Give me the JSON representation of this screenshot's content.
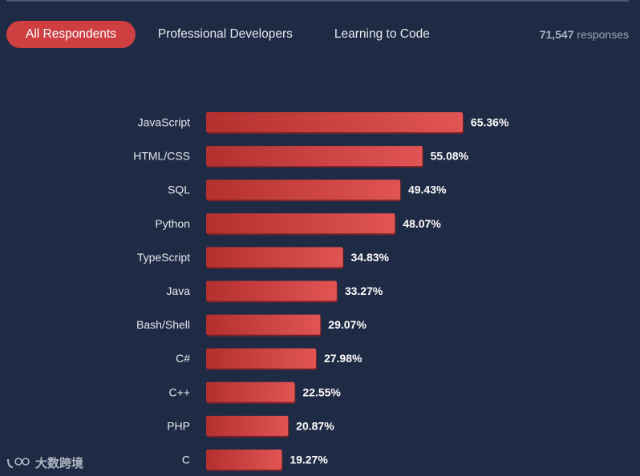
{
  "tabs": [
    {
      "label": "All Respondents",
      "active": true
    },
    {
      "label": "Professional Developers",
      "active": false
    },
    {
      "label": "Learning to Code",
      "active": false
    }
  ],
  "responses": {
    "count": "71,547",
    "label": "responses"
  },
  "watermark": {
    "text": "大数跨境"
  },
  "colors": {
    "background": "#1f2a44",
    "bar": "#c8393d",
    "bar_light": "#e05252",
    "tab_active": "#cf3f41"
  },
  "chart_data": {
    "type": "bar",
    "orientation": "horizontal",
    "categories": [
      "JavaScript",
      "HTML/CSS",
      "SQL",
      "Python",
      "TypeScript",
      "Java",
      "Bash/Shell",
      "C#",
      "C++",
      "PHP",
      "C"
    ],
    "values": [
      65.36,
      55.08,
      49.43,
      48.07,
      34.83,
      33.27,
      29.07,
      27.98,
      22.55,
      20.87,
      19.27
    ],
    "value_labels": [
      "65.36%",
      "55.08%",
      "49.43%",
      "48.07%",
      "34.83%",
      "33.27%",
      "29.07%",
      "27.98%",
      "22.55%",
      "20.87%",
      "19.27%"
    ],
    "unit": "%",
    "xlim": [
      0,
      100
    ],
    "grid": false
  }
}
